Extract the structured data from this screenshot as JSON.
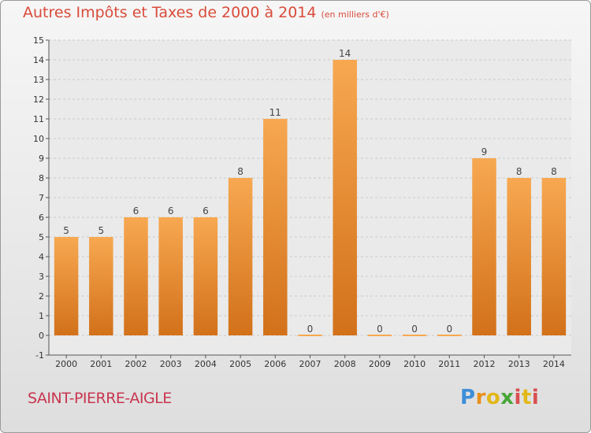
{
  "header": {
    "title": "Autres Impôts et Taxes de 2000 à 2014",
    "unit": "(en milliers d'€)"
  },
  "footer": {
    "commune": "SAINT-PIERRE-AIGLE",
    "logo": "Proxiti"
  },
  "colors": {
    "bar_top": "#f7a851",
    "bar_bottom": "#d2711a",
    "title": "#d94b3a",
    "commune": "#c8364f"
  },
  "chart_data": {
    "type": "bar",
    "title": "Autres Impôts et Taxes de 2000 à 2014",
    "subtitle": "(en milliers d'€)",
    "categories": [
      "2000",
      "2001",
      "2002",
      "2003",
      "2004",
      "2005",
      "2006",
      "2007",
      "2008",
      "2009",
      "2010",
      "2011",
      "2012",
      "2013",
      "2014"
    ],
    "values": [
      5,
      5,
      6,
      6,
      6,
      8,
      11,
      0,
      14,
      0,
      0,
      0,
      9,
      8,
      8
    ],
    "ylim": [
      -1,
      15
    ],
    "yticks": [
      -1,
      0,
      1,
      2,
      3,
      4,
      5,
      6,
      7,
      8,
      9,
      10,
      11,
      12,
      13,
      14,
      15
    ],
    "grid": "horizontal dashed",
    "data_labels": true
  }
}
